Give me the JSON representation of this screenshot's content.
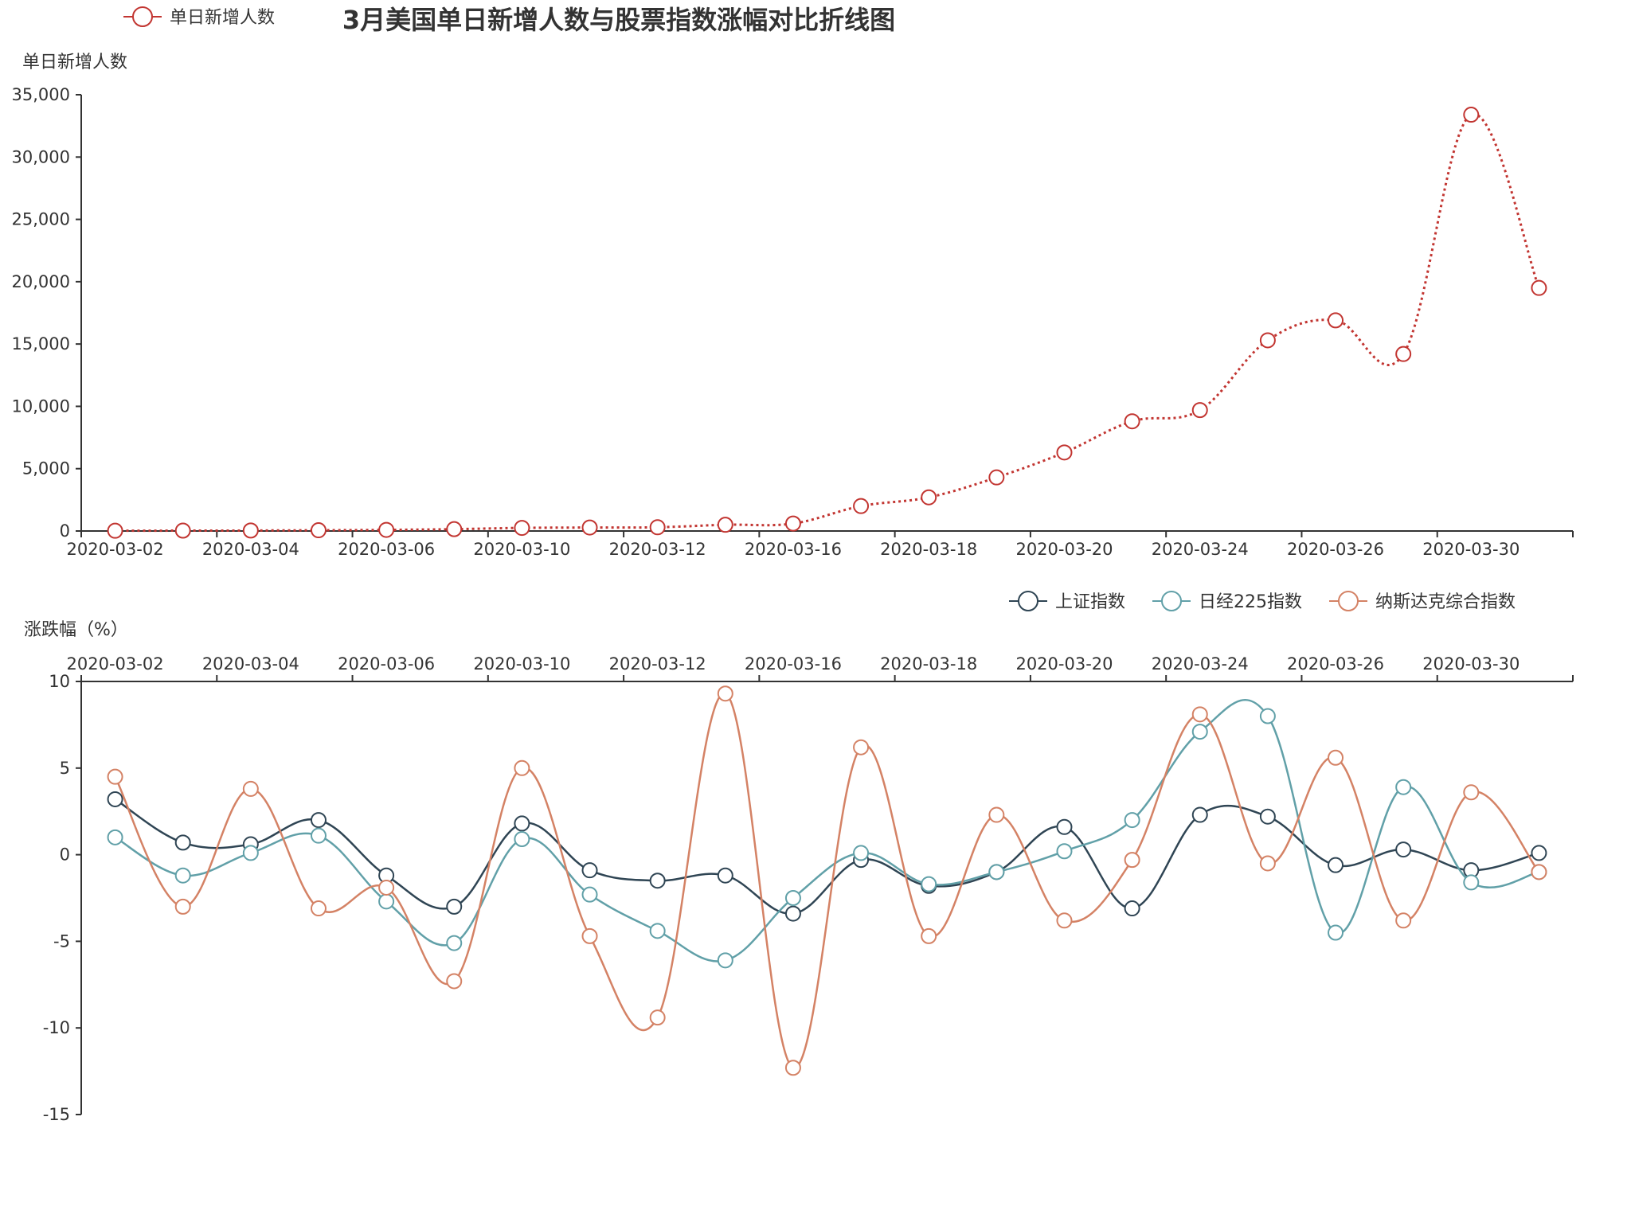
{
  "chart_data": [
    {
      "type": "line",
      "title": "3月美国单日新增人数与股票指数涨幅对比折线图",
      "ylabel": "单日新增人数",
      "ylim": [
        0,
        35000
      ],
      "yticks": [
        "0",
        "5,000",
        "10,000",
        "15,000",
        "20,000",
        "25,000",
        "30,000",
        "35,000"
      ],
      "x": [
        "2020-03-02",
        "2020-03-03",
        "2020-03-04",
        "2020-03-05",
        "2020-03-06",
        "2020-03-09",
        "2020-03-10",
        "2020-03-11",
        "2020-03-12",
        "2020-03-13",
        "2020-03-16",
        "2020-03-17",
        "2020-03-18",
        "2020-03-19",
        "2020-03-20",
        "2020-03-23",
        "2020-03-24",
        "2020-03-25",
        "2020-03-26",
        "2020-03-27",
        "2020-03-30",
        "2020-03-31"
      ],
      "xtick_labels": [
        "2020-03-02",
        "2020-03-04",
        "2020-03-06",
        "2020-03-10",
        "2020-03-12",
        "2020-03-16",
        "2020-03-18",
        "2020-03-20",
        "2020-03-24",
        "2020-03-26",
        "2020-03-30"
      ],
      "legend_position": "top-left",
      "series": [
        {
          "name": "单日新增人数",
          "color": "#c23531",
          "line_style": "dotted",
          "values": [
            20,
            30,
            40,
            60,
            90,
            150,
            250,
            280,
            300,
            500,
            600,
            2000,
            2700,
            4300,
            6300,
            8800,
            9700,
            15300,
            16900,
            14200,
            33400,
            19500
          ]
        }
      ]
    },
    {
      "type": "line",
      "ylabel": "涨跌幅（%）",
      "ylim": [
        -15,
        10
      ],
      "yticks": [
        "-15",
        "-10",
        "-5",
        "0",
        "5",
        "10"
      ],
      "x_axis_position": "top",
      "x": [
        "2020-03-02",
        "2020-03-03",
        "2020-03-04",
        "2020-03-05",
        "2020-03-06",
        "2020-03-09",
        "2020-03-10",
        "2020-03-11",
        "2020-03-12",
        "2020-03-13",
        "2020-03-16",
        "2020-03-17",
        "2020-03-18",
        "2020-03-19",
        "2020-03-20",
        "2020-03-23",
        "2020-03-24",
        "2020-03-25",
        "2020-03-26",
        "2020-03-27",
        "2020-03-30",
        "2020-03-31"
      ],
      "xtick_labels": [
        "2020-03-02",
        "2020-03-04",
        "2020-03-06",
        "2020-03-10",
        "2020-03-12",
        "2020-03-16",
        "2020-03-18",
        "2020-03-20",
        "2020-03-24",
        "2020-03-26",
        "2020-03-30"
      ],
      "legend_position": "top-right",
      "series": [
        {
          "name": "上证指数",
          "color": "#2f4554",
          "values": [
            3.2,
            0.7,
            0.6,
            2.0,
            -1.2,
            -3.0,
            1.8,
            -0.9,
            -1.5,
            -1.2,
            -3.4,
            -0.3,
            -1.8,
            -1.0,
            1.6,
            -3.1,
            2.3,
            2.2,
            -0.6,
            0.3,
            -0.9,
            0.1
          ]
        },
        {
          "name": "日经225指数",
          "color": "#61a0a8",
          "values": [
            1.0,
            -1.2,
            0.1,
            1.1,
            -2.7,
            -5.1,
            0.9,
            -2.3,
            -4.4,
            -6.1,
            -2.5,
            0.1,
            -1.7,
            -1.0,
            0.2,
            2.0,
            7.1,
            8.0,
            -4.5,
            3.9,
            -1.6,
            -1.0
          ]
        },
        {
          "name": "纳斯达克综合指数",
          "color": "#d48265",
          "values": [
            4.5,
            -3.0,
            3.8,
            -3.1,
            -1.9,
            -7.3,
            5.0,
            -4.7,
            -9.4,
            9.3,
            -12.3,
            6.2,
            -4.7,
            2.3,
            -3.8,
            -0.3,
            8.1,
            -0.5,
            5.6,
            -3.8,
            3.6,
            -1.0
          ]
        }
      ]
    }
  ]
}
